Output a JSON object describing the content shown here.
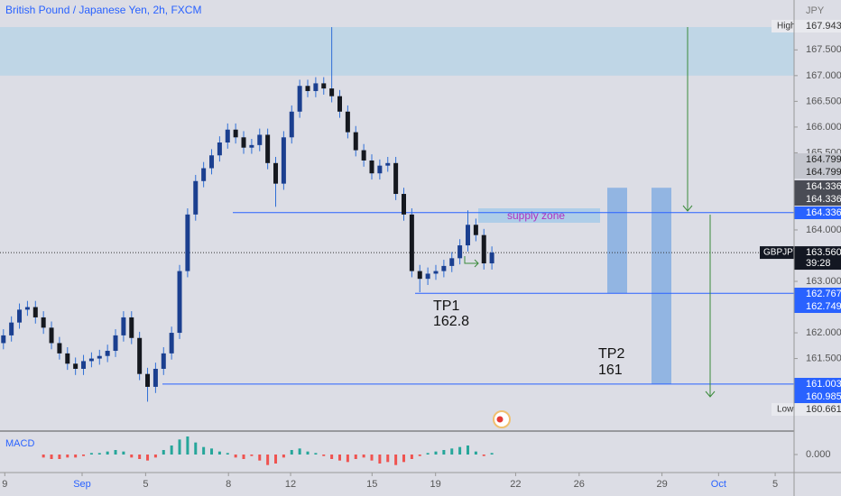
{
  "chart_data": {
    "type": "candlestick",
    "title": "British Pound / Japanese Yen, 2h, FXCM",
    "currency": "JPY",
    "xlim": [
      -2.974,
      25.784
    ],
    "xticks": [
      {
        "value": -2.8,
        "label": "9"
      },
      {
        "value": 0,
        "label": "Sep"
      },
      {
        "value": 2.3,
        "label": "5"
      },
      {
        "value": 5.3,
        "label": "8"
      },
      {
        "value": 7.55,
        "label": "12"
      },
      {
        "value": 10.5,
        "label": "15"
      },
      {
        "value": 12.8,
        "label": "19"
      },
      {
        "value": 15.7,
        "label": "22"
      },
      {
        "value": 18,
        "label": "26"
      },
      {
        "value": 21,
        "label": "29"
      },
      {
        "value": 23.05,
        "label": "Oct"
      },
      {
        "value": 25.1,
        "label": "5"
      }
    ],
    "ylim": [
      160.09,
      168.47
    ],
    "yticks": [
      {
        "value": 167.5,
        "label": "167.500"
      },
      {
        "value": 167,
        "label": "167.000"
      },
      {
        "value": 166.5,
        "label": "166.500"
      },
      {
        "value": 166,
        "label": "166.000"
      },
      {
        "value": 165.5,
        "label": "165.500"
      },
      {
        "value": 164,
        "label": "164.000"
      },
      {
        "value": 163,
        "label": "163.000"
      },
      {
        "value": 162,
        "label": "162.000"
      },
      {
        "value": 161.5,
        "label": "161.500"
      }
    ],
    "up_color": "#1b3f8f",
    "down_color": "#15181f",
    "x": [
      -2.85,
      -2.56,
      -2.27,
      -1.98,
      -1.69,
      -1.4,
      -1.11,
      -0.82,
      -0.53,
      -0.24,
      0.05,
      0.34,
      0.63,
      0.92,
      1.21,
      1.5,
      1.79,
      2.08,
      2.37,
      2.66,
      2.95,
      3.24,
      3.53,
      3.82,
      4.11,
      4.4,
      4.69,
      4.98,
      5.27,
      5.56,
      5.85,
      6.14,
      6.43,
      6.72,
      7.01,
      7.3,
      7.59,
      7.88,
      8.17,
      8.46,
      8.75,
      9.04,
      9.33,
      9.62,
      9.91,
      10.2,
      10.49,
      10.78,
      11.07,
      11.36,
      11.65,
      11.94,
      12.23,
      12.52,
      12.81,
      13.1,
      13.39,
      13.68,
      13.97,
      14.26,
      14.55,
      14.84
    ],
    "open": [
      161.8,
      161.95,
      162.2,
      162.45,
      162.5,
      162.3,
      162.1,
      161.8,
      161.6,
      161.4,
      161.3,
      161.45,
      161.5,
      161.55,
      161.65,
      161.95,
      162.3,
      161.9,
      161.2,
      160.95,
      161.3,
      161.6,
      162.0,
      163.2,
      164.3,
      164.95,
      165.2,
      165.45,
      165.7,
      165.95,
      165.8,
      165.6,
      165.65,
      165.85,
      165.3,
      164.9,
      165.8,
      166.3,
      166.8,
      166.7,
      166.85,
      166.75,
      166.6,
      166.3,
      165.9,
      165.55,
      165.35,
      165.1,
      165.25,
      165.3,
      164.7,
      164.3,
      163.2,
      163.05,
      163.15,
      163.2,
      163.3,
      163.45,
      163.7,
      164.1,
      163.9,
      163.35
    ],
    "high": [
      162.07,
      162.32,
      162.57,
      162.62,
      162.62,
      162.42,
      162.22,
      161.92,
      161.72,
      161.52,
      161.57,
      161.62,
      161.67,
      161.77,
      162.07,
      162.42,
      162.42,
      162.02,
      161.32,
      161.42,
      161.72,
      162.12,
      163.32,
      164.42,
      165.07,
      165.32,
      165.57,
      165.82,
      166.07,
      166.07,
      165.92,
      165.77,
      165.97,
      165.97,
      165.42,
      165.92,
      166.42,
      166.92,
      166.92,
      166.97,
      166.97,
      167.943,
      166.72,
      166.42,
      166.02,
      165.67,
      165.47,
      165.37,
      165.42,
      165.42,
      164.82,
      164.42,
      163.32,
      163.27,
      163.32,
      163.42,
      163.57,
      163.82,
      164.38,
      164.22,
      164.02,
      163.68
    ],
    "low": [
      161.68,
      161.83,
      162.08,
      162.33,
      162.18,
      161.98,
      161.68,
      161.48,
      161.28,
      161.18,
      161.18,
      161.33,
      161.38,
      161.43,
      161.53,
      161.83,
      161.78,
      161.08,
      160.661,
      160.83,
      161.18,
      161.48,
      161.88,
      163.08,
      164.18,
      164.83,
      165.08,
      165.33,
      165.58,
      165.68,
      165.48,
      165.48,
      165.53,
      165.18,
      164.45,
      164.78,
      165.68,
      166.18,
      166.58,
      166.58,
      166.63,
      166.48,
      166.18,
      165.78,
      165.43,
      165.23,
      164.98,
      164.98,
      165.13,
      164.58,
      164.18,
      163.08,
      162.79,
      162.93,
      163.03,
      163.08,
      163.18,
      163.33,
      163.58,
      163.78,
      163.23,
      163.23
    ],
    "close": [
      161.95,
      162.2,
      162.45,
      162.5,
      162.3,
      162.1,
      161.8,
      161.6,
      161.4,
      161.3,
      161.45,
      161.5,
      161.55,
      161.65,
      161.95,
      162.3,
      161.9,
      161.2,
      160.95,
      161.3,
      161.6,
      162.0,
      163.2,
      164.3,
      164.95,
      165.2,
      165.45,
      165.7,
      165.95,
      165.8,
      165.6,
      165.65,
      165.85,
      165.3,
      164.9,
      165.8,
      166.3,
      166.8,
      166.7,
      166.85,
      166.75,
      166.6,
      166.3,
      165.9,
      165.55,
      165.35,
      165.1,
      165.25,
      165.3,
      164.7,
      164.3,
      163.2,
      163.05,
      163.15,
      163.2,
      163.3,
      163.45,
      163.7,
      164.1,
      163.9,
      163.35,
      163.56
    ],
    "levels": [
      164.336,
      162.767,
      161.003
    ],
    "level_color": "#2962ff",
    "top_zone": [
      167.0,
      167.943
    ],
    "supply_zone": {
      "label": "supply zone",
      "range": [
        164.14,
        164.42
      ]
    },
    "target_bars": [
      [
        162.767,
        164.82
      ],
      [
        161.003,
        164.82
      ]
    ],
    "tp1": {
      "name": "TP1",
      "price": "162.8"
    },
    "tp2": {
      "name": "TP2",
      "price": "161"
    },
    "high_marker": {
      "label": "High",
      "value": 167.943
    },
    "low_marker": {
      "label": "Low",
      "value": 160.661
    },
    "price_tags": [
      164.799,
      164.799,
      164.336,
      164.336,
      164.336,
      162.767,
      162.749,
      161.003,
      160.985
    ],
    "last_price": {
      "symbol": "GBPJPY",
      "price": {
        "value": 163.56,
        "label": "163.560"
      },
      "countdown": "39:28"
    },
    "macd": {
      "name": "MACD",
      "ylim": [
        -0.12,
        0.12
      ],
      "yticks": [
        {
          "value": 0,
          "label": "0.000"
        }
      ],
      "up_color": "#26a69a",
      "down_color": "#ef5350",
      "values": [
        null,
        null,
        null,
        null,
        null,
        -0.02,
        -0.03,
        -0.03,
        -0.02,
        -0.02,
        -0.01,
        0.01,
        0.01,
        0.02,
        0.03,
        0.02,
        -0.02,
        -0.03,
        -0.04,
        -0.02,
        0.03,
        0.06,
        0.1,
        0.12,
        0.08,
        0.05,
        0.04,
        0.02,
        0.01,
        -0.02,
        -0.03,
        -0.01,
        -0.04,
        -0.07,
        -0.06,
        -0.02,
        0.03,
        0.04,
        0.02,
        0.01,
        -0.01,
        -0.03,
        -0.04,
        -0.05,
        -0.03,
        -0.02,
        -0.04,
        -0.06,
        -0.05,
        -0.07,
        -0.05,
        -0.03,
        -0.01,
        0.01,
        0.02,
        0.03,
        0.04,
        0.05,
        0.06,
        0.02,
        -0.01,
        0.01
      ]
    }
  }
}
